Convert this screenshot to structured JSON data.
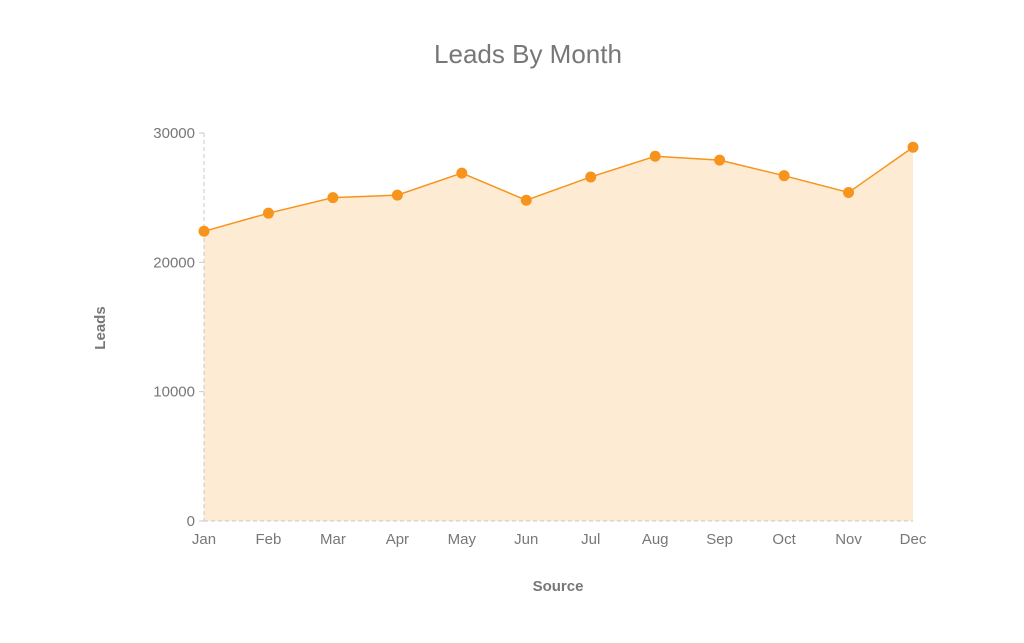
{
  "chart_data": {
    "type": "area",
    "title": "Leads By Month",
    "xlabel": "Source",
    "ylabel": "Leads",
    "categories": [
      "Jan",
      "Feb",
      "Mar",
      "Apr",
      "May",
      "Jun",
      "Jul",
      "Aug",
      "Sep",
      "Oct",
      "Nov",
      "Dec"
    ],
    "series": [
      {
        "values": [
          22400,
          23800,
          25000,
          25200,
          26900,
          24800,
          26600,
          28200,
          27900,
          26700,
          25400,
          28900
        ]
      }
    ],
    "ylim": [
      0,
      30000
    ],
    "yticks": [
      "0",
      "10000",
      "20000",
      "30000"
    ],
    "grid": false,
    "legend": "none",
    "colors": {
      "line": "#f7941d",
      "marker": "#f7941d",
      "fill": "#fdebd3",
      "axis": "#c8c8c8",
      "text": "#777777"
    }
  }
}
